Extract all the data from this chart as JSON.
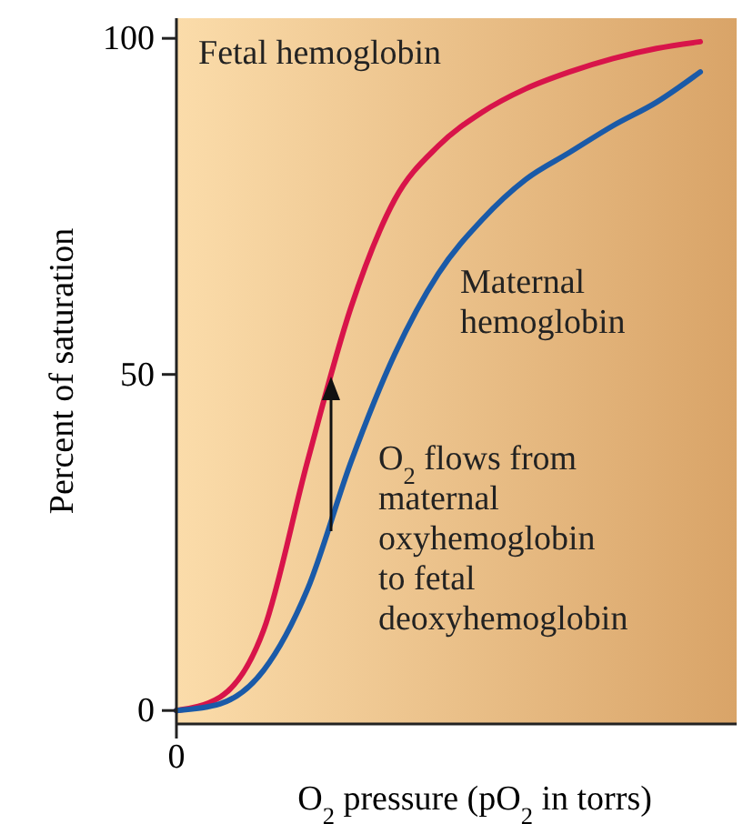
{
  "chart_data": {
    "type": "line",
    "xlabel": "O$_{2}$ pressure (pO$_{2}$ in torrs)",
    "ylabel": "Percent of saturation",
    "categories": [
      "0",
      null,
      null,
      null,
      null,
      null,
      null,
      null,
      null,
      null,
      null,
      null,
      null
    ],
    "series": [
      {
        "name": "Fetal hemoglobin",
        "color": "#d8144a",
        "values": [
          0,
          2,
          12,
          37,
          60,
          76,
          84,
          89,
          92.5,
          95,
          97,
          98.5,
          99.5
        ]
      },
      {
        "name": "Maternal\nhemoglobin",
        "color": "#1a5aa8",
        "values": [
          0,
          1,
          6,
          18,
          37,
          53,
          65,
          73,
          79,
          83,
          87,
          90.5,
          95
        ]
      }
    ],
    "ylim": [
      -2,
      103
    ],
    "yticks": [
      0,
      50,
      100
    ],
    "annotations": [
      "O$_{2}$ flows from\nmaternal\noxyhemoglobin\nto fetal\ndeoxyhemoglobin"
    ],
    "grid": false
  }
}
